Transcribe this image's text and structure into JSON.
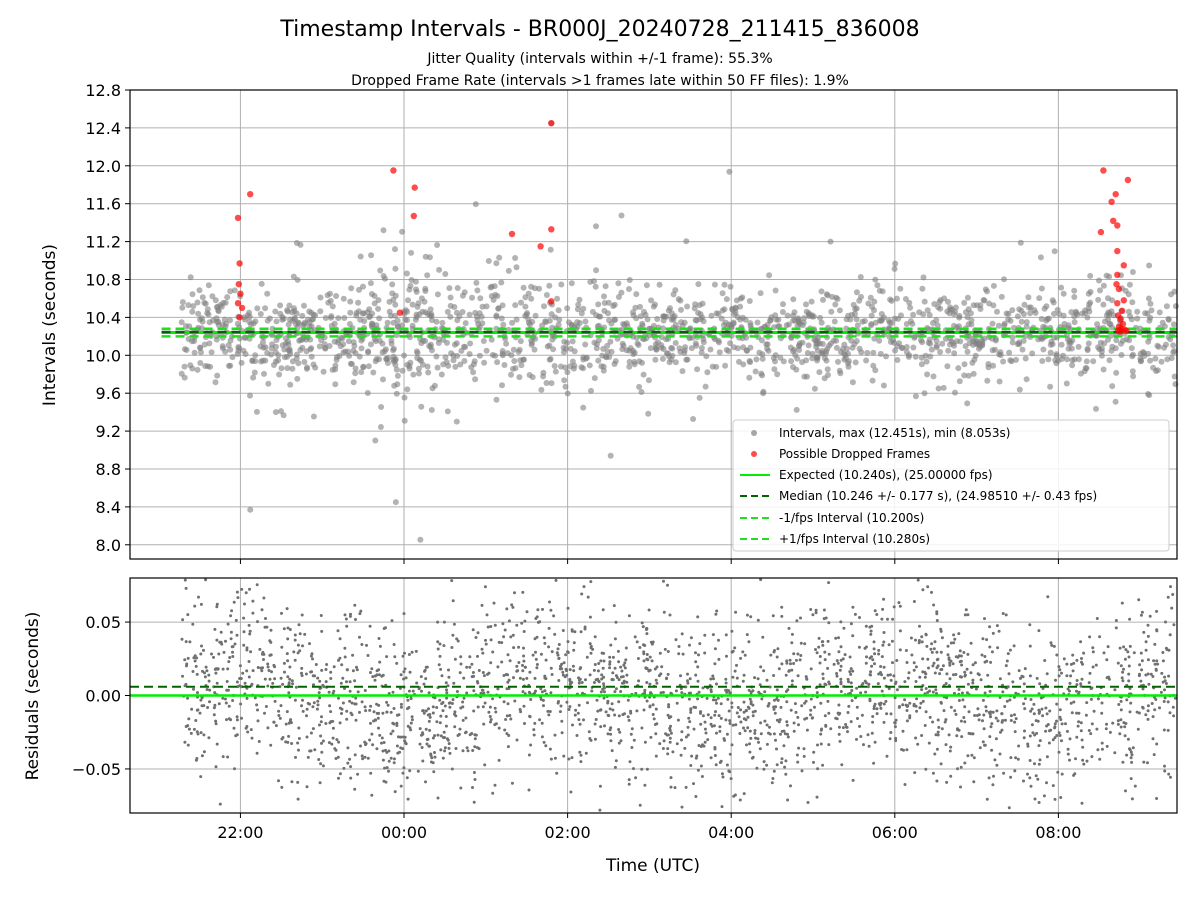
{
  "chart_data": [
    {
      "type": "scatter",
      "title": "Timestamp Intervals - BR000J_20240728_211415_836008",
      "subtitle_lines": [
        "Jitter Quality (intervals within +/-1 frame): 55.3%",
        "Dropped Frame Rate (intervals >1 frames late within 50 FF files): 1.9%"
      ],
      "ylabel": "Intervals (seconds)",
      "xlim_hours": [
        20.65,
        33.45
      ],
      "ylim": [
        7.85,
        12.8
      ],
      "yticks": [
        "8.0",
        "8.4",
        "8.8",
        "9.2",
        "9.6",
        "10.0",
        "10.4",
        "10.8",
        "11.2",
        "11.6",
        "12.0",
        "12.4",
        "12.8"
      ],
      "grid": true,
      "legend_position": "lower right",
      "legend": [
        "Intervals, max (12.451s), min (8.053s)",
        "Possible Dropped Frames",
        "Expected (10.240s), (25.00000 fps)",
        "Median (10.246 +/- 0.177 s), (24.98510 +/- 0.43 fps)",
        "-1/fps Interval (10.200s)",
        "+1/fps Interval (10.280s)"
      ],
      "colors": {
        "intervals": "#808080",
        "dropped": "#ff0000",
        "expected": "#00ee00",
        "median": "#006400",
        "band": "#22dd22"
      },
      "lines": {
        "expected": 10.24,
        "median": 10.246,
        "minus_one_frame": 10.2,
        "plus_one_frame": 10.28
      },
      "scatter_generation": {
        "x_start_hours": 21.28,
        "x_end_hours": 33.45,
        "count": 1800,
        "mean": 10.246,
        "spread": 0.177
      },
      "points_dropped": [
        {
          "t": 21.97,
          "y": 11.45
        },
        {
          "t": 21.99,
          "y": 10.97
        },
        {
          "t": 21.98,
          "y": 10.75
        },
        {
          "t": 22.0,
          "y": 10.65
        },
        {
          "t": 21.97,
          "y": 10.55
        },
        {
          "t": 22.02,
          "y": 10.5
        },
        {
          "t": 21.99,
          "y": 10.4
        },
        {
          "t": 22.12,
          "y": 11.7
        },
        {
          "t": 23.87,
          "y": 11.95
        },
        {
          "t": 23.95,
          "y": 10.45
        },
        {
          "t": 24.13,
          "y": 11.77
        },
        {
          "t": 24.12,
          "y": 11.47
        },
        {
          "t": 25.32,
          "y": 11.28
        },
        {
          "t": 25.67,
          "y": 11.15
        },
        {
          "t": 25.8,
          "y": 12.45
        },
        {
          "t": 25.8,
          "y": 11.33
        },
        {
          "t": 25.8,
          "y": 10.57
        },
        {
          "t": 32.55,
          "y": 11.95
        },
        {
          "t": 32.52,
          "y": 11.3
        },
        {
          "t": 32.65,
          "y": 11.62
        },
        {
          "t": 32.7,
          "y": 11.7
        },
        {
          "t": 32.67,
          "y": 11.42
        },
        {
          "t": 32.72,
          "y": 11.37
        },
        {
          "t": 32.85,
          "y": 11.85
        },
        {
          "t": 32.72,
          "y": 11.1
        },
        {
          "t": 32.8,
          "y": 10.95
        },
        {
          "t": 32.72,
          "y": 10.85
        },
        {
          "t": 32.71,
          "y": 10.75
        },
        {
          "t": 32.74,
          "y": 10.7
        },
        {
          "t": 32.72,
          "y": 10.55
        },
        {
          "t": 32.8,
          "y": 10.58
        },
        {
          "t": 32.78,
          "y": 10.47
        },
        {
          "t": 32.73,
          "y": 10.42
        },
        {
          "t": 32.76,
          "y": 10.38
        },
        {
          "t": 32.79,
          "y": 10.33
        },
        {
          "t": 32.74,
          "y": 10.3
        },
        {
          "t": 32.77,
          "y": 10.28
        },
        {
          "t": 32.81,
          "y": 10.27
        },
        {
          "t": 32.73,
          "y": 10.26
        },
        {
          "t": 32.83,
          "y": 10.26
        },
        {
          "t": 32.76,
          "y": 10.25
        }
      ]
    },
    {
      "type": "scatter",
      "xlabel": "Time (UTC)",
      "ylabel": "Residuals (seconds)",
      "ylim": [
        -0.08,
        0.08
      ],
      "yticks": [
        "−0.05",
        "0.00",
        "0.05"
      ],
      "xticks": [
        "22:00",
        "00:00",
        "02:00",
        "04:00",
        "06:00",
        "08:00"
      ],
      "xtick_hours": [
        22,
        24,
        26,
        28,
        30,
        32
      ],
      "grid": true,
      "colors": {
        "points": "#707070",
        "zero_line": "#00ee00",
        "median_line": "#006400"
      },
      "lines": {
        "zero": 0.0,
        "median_offset": 0.006
      },
      "scatter_generation": {
        "count": 2600,
        "spread": 0.03
      }
    }
  ]
}
